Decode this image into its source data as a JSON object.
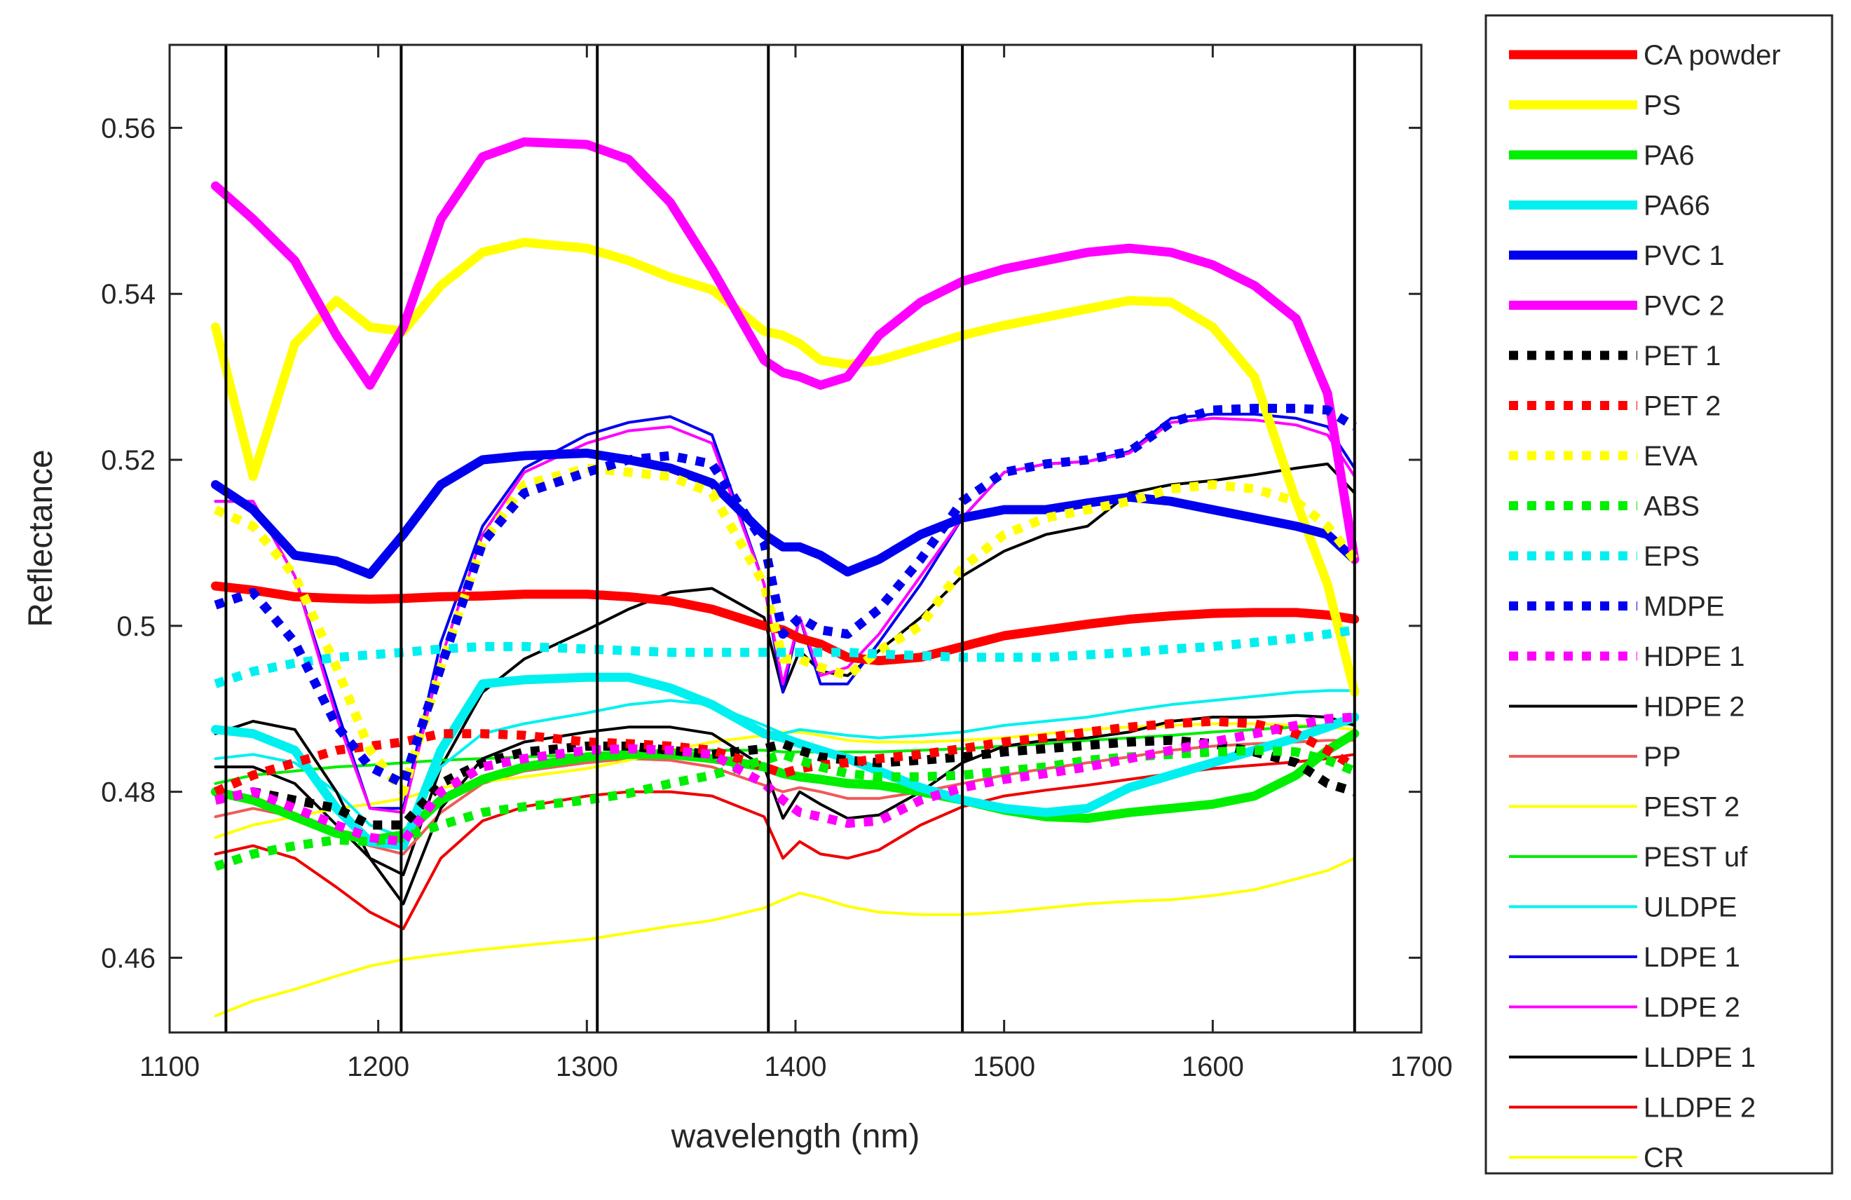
{
  "chart_data": {
    "type": "line",
    "title": "",
    "xlabel": "wavelength (nm)",
    "ylabel": "Reflectance",
    "xlim": [
      1100,
      1700
    ],
    "ylim": [
      0.451,
      0.57
    ],
    "xticks": [
      1100,
      1200,
      1300,
      1400,
      1500,
      1600,
      1700
    ],
    "xtick_labels": [
      "1100",
      "1200",
      "1300",
      "1400",
      "1500",
      "1600",
      "1700"
    ],
    "yticks": [
      0.46,
      0.48,
      0.5,
      0.52,
      0.54,
      0.56
    ],
    "ytick_labels": [
      "0.46",
      "0.48",
      "0.5",
      "0.52",
      "0.54",
      "0.56"
    ],
    "vertical_lines": [
      1127,
      1211,
      1305,
      1387,
      1480,
      1668
    ],
    "legend_placement": "outside-right",
    "x": [
      1122,
      1140,
      1160,
      1180,
      1196,
      1212,
      1230,
      1250,
      1270,
      1300,
      1320,
      1340,
      1360,
      1385,
      1394,
      1402,
      1412,
      1425,
      1440,
      1460,
      1480,
      1500,
      1520,
      1540,
      1560,
      1580,
      1600,
      1620,
      1640,
      1655,
      1668
    ],
    "series": [
      {
        "name": "CA powder",
        "color": "#ff0000",
        "style": "thick",
        "values": [
          0.5048,
          0.5043,
          0.5035,
          0.5033,
          0.5032,
          0.5033,
          0.5035,
          0.5036,
          0.5038,
          0.5038,
          0.5035,
          0.503,
          0.502,
          0.5,
          0.4995,
          0.4985,
          0.4978,
          0.4962,
          0.4958,
          0.4962,
          0.4975,
          0.4988,
          0.4995,
          0.5002,
          0.5008,
          0.5012,
          0.5015,
          0.5016,
          0.5016,
          0.5013,
          0.5008
        ]
      },
      {
        "name": "PS",
        "color": "#ffff00",
        "style": "thick",
        "values": [
          0.536,
          0.518,
          0.534,
          0.5392,
          0.536,
          0.5355,
          0.541,
          0.545,
          0.5462,
          0.5455,
          0.544,
          0.542,
          0.5405,
          0.5355,
          0.535,
          0.534,
          0.532,
          0.5315,
          0.532,
          0.5335,
          0.535,
          0.5362,
          0.5372,
          0.5382,
          0.5392,
          0.539,
          0.536,
          0.53,
          0.515,
          0.505,
          0.492
        ]
      },
      {
        "name": "PA6",
        "color": "#00ee00",
        "style": "thick",
        "values": [
          0.48,
          0.479,
          0.477,
          0.475,
          0.4742,
          0.4748,
          0.479,
          0.4815,
          0.483,
          0.4842,
          0.4845,
          0.4845,
          0.484,
          0.483,
          0.4822,
          0.4818,
          0.4815,
          0.481,
          0.4808,
          0.48,
          0.479,
          0.4778,
          0.477,
          0.4768,
          0.4775,
          0.478,
          0.4785,
          0.4795,
          0.482,
          0.485,
          0.487
        ]
      },
      {
        "name": "PA66",
        "color": "#00f0f0",
        "style": "thick",
        "values": [
          0.4875,
          0.487,
          0.485,
          0.478,
          0.474,
          0.4735,
          0.485,
          0.493,
          0.4935,
          0.4938,
          0.4938,
          0.4925,
          0.4905,
          0.487,
          0.4865,
          0.4858,
          0.485,
          0.484,
          0.4825,
          0.4805,
          0.479,
          0.478,
          0.4775,
          0.478,
          0.4805,
          0.482,
          0.4835,
          0.485,
          0.4865,
          0.4878,
          0.489
        ]
      },
      {
        "name": "PVC 1",
        "color": "#0000ee",
        "style": "thick",
        "values": [
          0.517,
          0.514,
          0.5085,
          0.5078,
          0.5062,
          0.511,
          0.517,
          0.52,
          0.5205,
          0.5208,
          0.52,
          0.519,
          0.5172,
          0.511,
          0.5095,
          0.5095,
          0.5085,
          0.5065,
          0.508,
          0.511,
          0.513,
          0.514,
          0.514,
          0.5148,
          0.5155,
          0.515,
          0.514,
          0.513,
          0.512,
          0.511,
          0.508
        ]
      },
      {
        "name": "PVC 2",
        "color": "#ff00ff",
        "style": "thick",
        "values": [
          0.553,
          0.549,
          0.544,
          0.535,
          0.529,
          0.536,
          0.549,
          0.5565,
          0.5583,
          0.558,
          0.5562,
          0.551,
          0.543,
          0.532,
          0.5305,
          0.53,
          0.529,
          0.53,
          0.535,
          0.539,
          0.5415,
          0.543,
          0.544,
          0.545,
          0.5455,
          0.545,
          0.5435,
          0.541,
          0.537,
          0.528,
          0.508
        ]
      },
      {
        "name": "PET 1",
        "color": "#000000",
        "style": "dotted",
        "values": [
          0.479,
          0.48,
          0.479,
          0.478,
          0.476,
          0.476,
          0.481,
          0.4835,
          0.4848,
          0.4855,
          0.4855,
          0.485,
          0.4845,
          0.4852,
          0.4858,
          0.485,
          0.4842,
          0.4838,
          0.4835,
          0.4838,
          0.4842,
          0.4848,
          0.4852,
          0.4856,
          0.486,
          0.4862,
          0.4858,
          0.4848,
          0.4835,
          0.481,
          0.48
        ]
      },
      {
        "name": "PET 2",
        "color": "#ff0000",
        "style": "dotted",
        "values": [
          0.48,
          0.482,
          0.4835,
          0.485,
          0.4855,
          0.486,
          0.487,
          0.487,
          0.4868,
          0.486,
          0.4858,
          0.4855,
          0.485,
          0.483,
          0.4822,
          0.4828,
          0.4832,
          0.4835,
          0.484,
          0.4845,
          0.4852,
          0.486,
          0.4865,
          0.4872,
          0.4878,
          0.4882,
          0.4885,
          0.4882,
          0.487,
          0.485,
          0.483
        ]
      },
      {
        "name": "EVA",
        "color": "#ffff00",
        "style": "dotted",
        "values": [
          0.514,
          0.512,
          0.506,
          0.495,
          0.485,
          0.48,
          0.495,
          0.51,
          0.517,
          0.519,
          0.5185,
          0.518,
          0.516,
          0.505,
          0.496,
          0.496,
          0.495,
          0.494,
          0.497,
          0.5,
          0.507,
          0.511,
          0.513,
          0.514,
          0.515,
          0.5165,
          0.517,
          0.5165,
          0.515,
          0.512,
          0.508
        ]
      },
      {
        "name": "ABS",
        "color": "#00ee00",
        "style": "dotted",
        "values": [
          0.471,
          0.4725,
          0.4735,
          0.4742,
          0.474,
          0.4745,
          0.476,
          0.4775,
          0.4782,
          0.479,
          0.4798,
          0.481,
          0.482,
          0.4838,
          0.4845,
          0.4838,
          0.483,
          0.4822,
          0.4818,
          0.4818,
          0.482,
          0.4825,
          0.483,
          0.4838,
          0.4842,
          0.4845,
          0.4848,
          0.485,
          0.4848,
          0.4838,
          0.4825
        ]
      },
      {
        "name": "EPS",
        "color": "#00f0f0",
        "style": "dotted",
        "values": [
          0.493,
          0.4945,
          0.4955,
          0.4962,
          0.4965,
          0.4968,
          0.4972,
          0.4975,
          0.4975,
          0.4972,
          0.497,
          0.4968,
          0.4968,
          0.4968,
          0.4968,
          0.4968,
          0.4968,
          0.4968,
          0.4966,
          0.4964,
          0.4962,
          0.4962,
          0.4962,
          0.4965,
          0.4968,
          0.4972,
          0.4975,
          0.498,
          0.4985,
          0.499,
          0.4995
        ]
      },
      {
        "name": "MDPE",
        "color": "#0000ee",
        "style": "dotted",
        "values": [
          0.5025,
          0.504,
          0.498,
          0.488,
          0.483,
          0.481,
          0.495,
          0.51,
          0.516,
          0.5185,
          0.52,
          0.5205,
          0.5195,
          0.51,
          0.499,
          0.501,
          0.4995,
          0.499,
          0.502,
          0.508,
          0.515,
          0.5185,
          0.5195,
          0.52,
          0.521,
          0.5245,
          0.526,
          0.5262,
          0.5262,
          0.526,
          0.524
        ]
      },
      {
        "name": "HDPE 1",
        "color": "#ff00ff",
        "style": "dotted",
        "values": [
          0.479,
          0.48,
          0.478,
          0.476,
          0.4745,
          0.474,
          0.48,
          0.483,
          0.484,
          0.485,
          0.4852,
          0.485,
          0.4845,
          0.481,
          0.479,
          0.4775,
          0.477,
          0.4762,
          0.4765,
          0.479,
          0.4805,
          0.4815,
          0.4822,
          0.483,
          0.484,
          0.485,
          0.486,
          0.487,
          0.488,
          0.4888,
          0.489
        ]
      },
      {
        "name": "HDPE 2",
        "color": "#000000",
        "style": "thin",
        "values": [
          0.483,
          0.483,
          0.481,
          0.476,
          0.472,
          0.47,
          0.483,
          0.492,
          0.496,
          0.4995,
          0.502,
          0.504,
          0.5045,
          0.501,
          0.492,
          0.497,
          0.4945,
          0.494,
          0.497,
          0.501,
          0.506,
          0.509,
          0.511,
          0.512,
          0.516,
          0.517,
          0.5175,
          0.5182,
          0.519,
          0.5195,
          0.516
        ]
      },
      {
        "name": "PP",
        "color": "#f05a5a",
        "style": "thin",
        "values": [
          0.477,
          0.478,
          0.477,
          0.4752,
          0.4735,
          0.4725,
          0.4775,
          0.481,
          0.4825,
          0.4835,
          0.484,
          0.4838,
          0.483,
          0.4808,
          0.48,
          0.4805,
          0.48,
          0.4792,
          0.4792,
          0.48,
          0.481,
          0.482,
          0.4828,
          0.4835,
          0.4842,
          0.485,
          0.4855,
          0.4858,
          0.486,
          0.4862,
          0.4862
        ]
      },
      {
        "name": "PEST 2",
        "color": "#ffff00",
        "style": "thin",
        "values": [
          0.4745,
          0.476,
          0.477,
          0.478,
          0.4785,
          0.4792,
          0.4805,
          0.4812,
          0.4818,
          0.4828,
          0.4838,
          0.485,
          0.486,
          0.4868,
          0.4872,
          0.4872,
          0.4868,
          0.4862,
          0.486,
          0.486,
          0.4862,
          0.4865,
          0.487,
          0.4875,
          0.4878,
          0.488,
          0.4882,
          0.4882,
          0.488,
          0.4878,
          0.4875
        ]
      },
      {
        "name": "PEST uf",
        "color": "#00ee00",
        "style": "thin",
        "values": [
          0.481,
          0.482,
          0.4825,
          0.483,
          0.4832,
          0.4835,
          0.4838,
          0.484,
          0.4842,
          0.4845,
          0.4848,
          0.485,
          0.485,
          0.485,
          0.4848,
          0.4848,
          0.4848,
          0.4848,
          0.4848,
          0.485,
          0.4852,
          0.4855,
          0.4858,
          0.4862,
          0.4865,
          0.4868,
          0.4872,
          0.4875,
          0.4878,
          0.488,
          0.4882
        ]
      },
      {
        "name": "ULDPE",
        "color": "#00f0f0",
        "style": "thin",
        "values": [
          0.484,
          0.4845,
          0.4835,
          0.48,
          0.476,
          0.4745,
          0.483,
          0.487,
          0.4882,
          0.4895,
          0.4905,
          0.491,
          0.4905,
          0.488,
          0.487,
          0.4875,
          0.4872,
          0.4868,
          0.4865,
          0.4868,
          0.4872,
          0.488,
          0.4885,
          0.489,
          0.4898,
          0.4905,
          0.491,
          0.4915,
          0.492,
          0.4922,
          0.4922
        ]
      },
      {
        "name": "LDPE 1",
        "color": "#0000ee",
        "style": "thin",
        "values": [
          0.515,
          0.515,
          0.506,
          0.49,
          0.478,
          0.478,
          0.498,
          0.512,
          0.519,
          0.523,
          0.5245,
          0.5252,
          0.523,
          0.505,
          0.492,
          0.501,
          0.493,
          0.493,
          0.498,
          0.505,
          0.513,
          0.5185,
          0.5195,
          0.5198,
          0.521,
          0.525,
          0.5255,
          0.5255,
          0.525,
          0.524,
          0.519
        ]
      },
      {
        "name": "LDPE 2",
        "color": "#ff00ff",
        "style": "thin",
        "values": [
          0.515,
          0.515,
          0.506,
          0.489,
          0.478,
          0.4775,
          0.496,
          0.511,
          0.5185,
          0.522,
          0.5235,
          0.524,
          0.522,
          0.505,
          0.493,
          0.501,
          0.494,
          0.495,
          0.499,
          0.506,
          0.513,
          0.5185,
          0.5195,
          0.5198,
          0.5208,
          0.5245,
          0.525,
          0.5248,
          0.5242,
          0.523,
          0.518
        ]
      },
      {
        "name": "LLDPE 1",
        "color": "#000000",
        "style": "thin",
        "values": [
          0.487,
          0.4885,
          0.4875,
          0.48,
          0.472,
          0.4665,
          0.478,
          0.484,
          0.486,
          0.4872,
          0.4878,
          0.4878,
          0.487,
          0.483,
          0.4768,
          0.48,
          0.4785,
          0.4768,
          0.4772,
          0.48,
          0.4835,
          0.4855,
          0.4862,
          0.4865,
          0.4872,
          0.4885,
          0.489,
          0.489,
          0.4892,
          0.489,
          0.488
        ]
      },
      {
        "name": "LLDPE 2",
        "color": "#ee0000",
        "style": "thin",
        "values": [
          0.4725,
          0.4735,
          0.472,
          0.4685,
          0.4655,
          0.4635,
          0.472,
          0.4765,
          0.4782,
          0.4795,
          0.48,
          0.48,
          0.4795,
          0.477,
          0.472,
          0.474,
          0.4725,
          0.472,
          0.473,
          0.476,
          0.4782,
          0.4795,
          0.4802,
          0.4808,
          0.4815,
          0.4822,
          0.4828,
          0.4832,
          0.4836,
          0.484,
          0.4845
        ]
      },
      {
        "name": "CR",
        "color": "#ffff00",
        "style": "thin",
        "values": [
          0.453,
          0.4548,
          0.4562,
          0.4578,
          0.459,
          0.4598,
          0.4604,
          0.461,
          0.4615,
          0.4622,
          0.463,
          0.4638,
          0.4645,
          0.466,
          0.467,
          0.4678,
          0.4672,
          0.4662,
          0.4655,
          0.4652,
          0.4652,
          0.4655,
          0.466,
          0.4665,
          0.4668,
          0.467,
          0.4675,
          0.4682,
          0.4695,
          0.4705,
          0.472
        ]
      }
    ]
  }
}
